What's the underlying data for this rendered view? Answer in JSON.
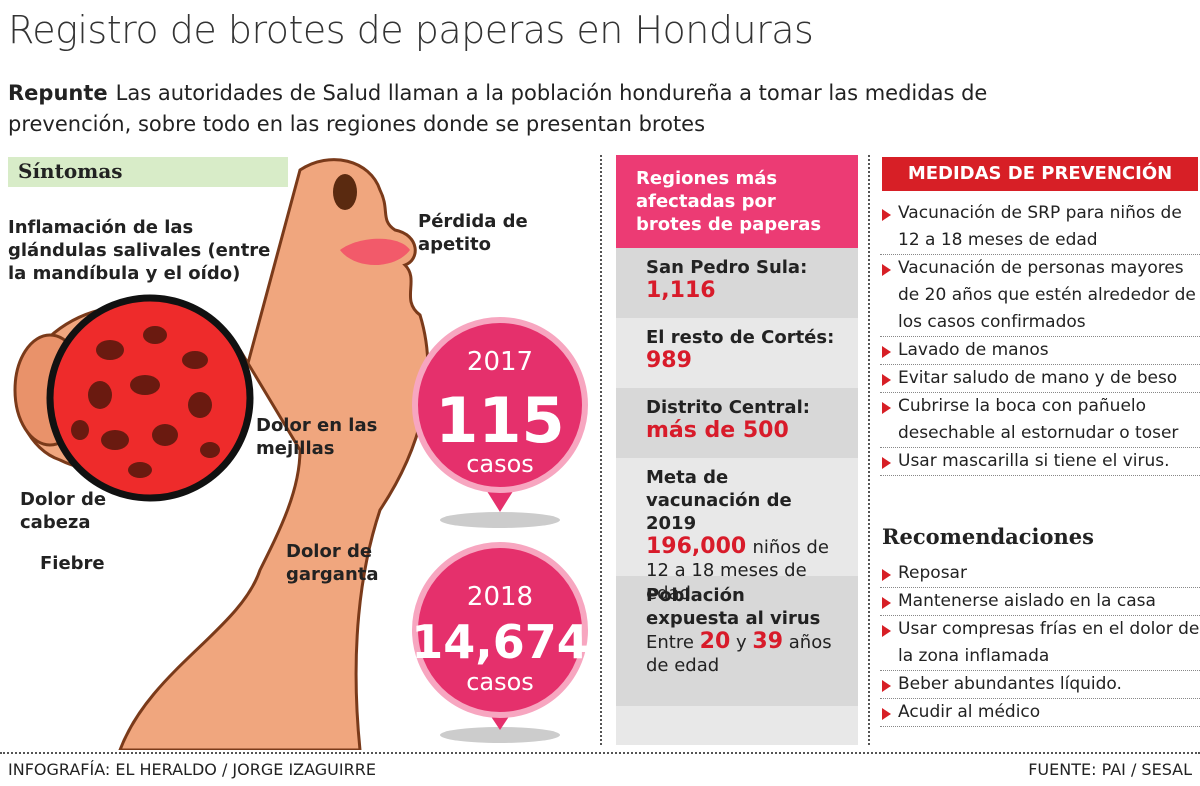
{
  "title": "Registro de brotes de paperas en Honduras",
  "intro": {
    "lead": "Repunte",
    "text": "Las autoridades de Salud llaman a la población hondureña a tomar las medidas de prevención, sobre todo en las regiones donde se presentan brotes"
  },
  "symptoms": {
    "heading": "Síntomas",
    "labels": [
      "Inflamación de las glándulas salivales (entre la mandíbula y el oído)",
      "Pérdida de apetito",
      "Dolor en las mejillas",
      "Dolor de cabeza",
      "Fiebre",
      "Dolor de garganta"
    ]
  },
  "cases": [
    {
      "year": "2017",
      "count": "115",
      "unit": "casos"
    },
    {
      "year": "2018",
      "count": "14,674",
      "unit": "casos"
    }
  ],
  "regions": {
    "heading": "Regiones más afectadas por brotes de paperas",
    "items": [
      {
        "label": "San Pedro Sula:",
        "value": "1,116"
      },
      {
        "label": "El resto de Cortés:",
        "value": "989"
      },
      {
        "label": "Distrito Central:",
        "value": "más de 500"
      },
      {
        "label": "Meta de vacunación de 2019",
        "value": "196,000",
        "suffix": "niños de 12 a 18 meses de edad"
      },
      {
        "label": "Población expuesta al virus",
        "parts": [
          "Entre",
          "20",
          "y",
          "39",
          "años de edad"
        ]
      }
    ]
  },
  "prevention": {
    "heading": "MEDIDAS DE PREVENCIÓN",
    "items": [
      "Vacunación de SRP para niños de 12 a 18 meses de edad",
      "Vacunación de personas mayores de 20 años que estén alrededor de los casos confirmados",
      "Lavado de manos",
      "Evitar saludo de mano y de beso",
      "Cubrirse la boca con pañuelo desechable al estornudar o toser",
      "Usar mascarilla si tiene el virus."
    ]
  },
  "recommendations": {
    "heading": "Recomendaciones",
    "items": [
      "Reposar",
      "Mantenerse aislado en la casa",
      "Usar compresas frías en el dolor de la zona inflamada",
      "Beber abundantes líquido.",
      "Acudir al médico"
    ]
  },
  "footer": {
    "credit": "INFOGRAFÍA: EL HERALDO / JORGE IZAGUIRRE",
    "source": "FUENTE: PAI / SESAL"
  }
}
